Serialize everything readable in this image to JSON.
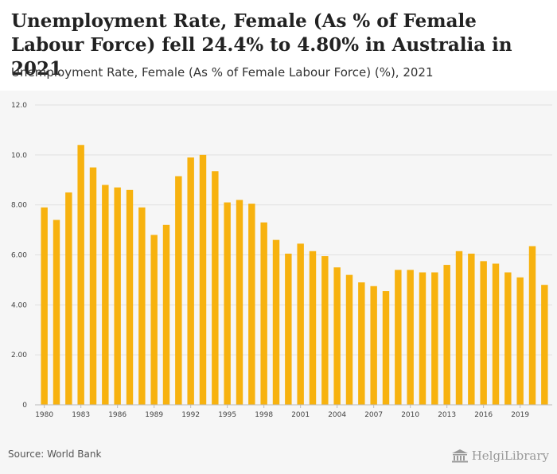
{
  "header": {
    "title": "Unemployment Rate, Female (As % of Female Labour Force) fell 24.4% to 4.80% in Australia in 2021",
    "subtitle": "Unemployment Rate, Female (As % of Female Labour Force) (%), 2021"
  },
  "footer": {
    "source": "Source: World Bank",
    "logo_text": "HelgiLibrary"
  },
  "colors": {
    "bar": "#f7b20f",
    "grid": "#e0e0e0",
    "background": "#f6f6f6"
  },
  "chart_data": {
    "type": "bar",
    "title": "",
    "xlabel": "",
    "ylabel": "",
    "ylim": [
      0,
      12
    ],
    "yticks": [
      0,
      2,
      4,
      6,
      8,
      10,
      12
    ],
    "ytick_labels": [
      "0",
      "2.00",
      "4.00",
      "6.00",
      "8.00",
      "10.0",
      "12.0"
    ],
    "xtick_labels": [
      "1980",
      "1983",
      "1986",
      "1989",
      "1992",
      "1995",
      "1998",
      "2001",
      "2004",
      "2007",
      "2010",
      "2013",
      "2016",
      "2019"
    ],
    "grid": true,
    "categories": [
      "1980",
      "1981",
      "1982",
      "1983",
      "1984",
      "1985",
      "1986",
      "1987",
      "1988",
      "1989",
      "1990",
      "1991",
      "1992",
      "1993",
      "1994",
      "1995",
      "1996",
      "1997",
      "1998",
      "1999",
      "2000",
      "2001",
      "2002",
      "2003",
      "2004",
      "2005",
      "2006",
      "2007",
      "2008",
      "2009",
      "2010",
      "2011",
      "2012",
      "2013",
      "2014",
      "2015",
      "2016",
      "2017",
      "2018",
      "2019",
      "2020",
      "2021"
    ],
    "values": [
      7.9,
      7.4,
      8.5,
      10.4,
      9.5,
      8.8,
      8.7,
      8.6,
      7.9,
      6.8,
      7.2,
      9.15,
      9.9,
      10.0,
      9.35,
      8.1,
      8.2,
      8.05,
      7.3,
      6.6,
      6.05,
      6.45,
      6.15,
      5.95,
      5.5,
      5.2,
      4.9,
      4.75,
      4.55,
      5.4,
      5.4,
      5.3,
      5.3,
      5.6,
      6.15,
      6.05,
      5.75,
      5.65,
      5.3,
      5.1,
      6.35,
      4.8
    ]
  }
}
